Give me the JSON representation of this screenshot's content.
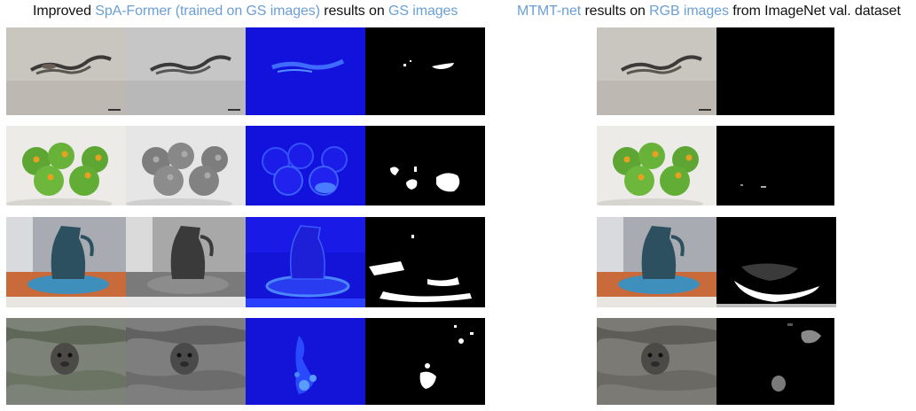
{
  "left_heading": {
    "prefix": "Improved ",
    "model": "SpA-Former (trained on GS images)",
    "middle": " results on ",
    "target": "GS images"
  },
  "right_heading": {
    "model": "MTMT-net",
    "middle": " results on ",
    "target": "RGB images",
    "suffix": " from ImageNet val. dataset"
  },
  "colors": {
    "highlight": "#6a9fd6",
    "text": "#111111",
    "heatmap_blue": "#1010e0",
    "mask_black": "#000000",
    "mask_white": "#ffffff"
  },
  "rows": [
    {
      "subject": "snake on sand",
      "panels": [
        "rgb-input",
        "grayscale-input",
        "attention-heatmap",
        "shadow-mask",
        "rgb-input",
        "shadow-mask"
      ]
    },
    {
      "subject": "green apples",
      "panels": [
        "rgb-input",
        "grayscale-input",
        "attention-heatmap",
        "shadow-mask",
        "rgb-input",
        "shadow-mask"
      ]
    },
    {
      "subject": "pitcher on plate",
      "panels": [
        "rgb-input",
        "grayscale-input",
        "attention-heatmap",
        "shadow-mask",
        "rgb-input",
        "shadow-mask"
      ]
    },
    {
      "subject": "seal in water",
      "panels": [
        "rgb-input",
        "grayscale-input",
        "attention-heatmap",
        "shadow-mask",
        "rgb-input",
        "shadow-mask"
      ]
    }
  ]
}
